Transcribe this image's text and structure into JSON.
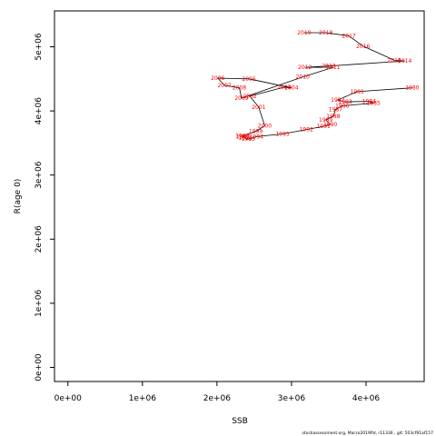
{
  "chart_data": {
    "type": "line",
    "xlabel": "SSB",
    "ylabel": "R(age 0)",
    "xlim": [
      -180000,
      4780000
    ],
    "ylim": [
      -220000,
      5560000
    ],
    "x_ticks": [
      0,
      1000000,
      2000000,
      3000000,
      4000000
    ],
    "x_tick_labels": [
      "0e+00",
      "1e+06",
      "2e+06",
      "3e+06",
      "4e+06"
    ],
    "y_ticks": [
      0,
      1000000,
      2000000,
      3000000,
      4000000,
      5000000
    ],
    "y_tick_labels": [
      "0e+00",
      "1e+06",
      "2e+06",
      "3e+06",
      "4e+06",
      "5e+06"
    ],
    "grid": false,
    "line_color": "#000000",
    "label_color": "#ff0000",
    "footnote": "stockassessment.org, Macro2019fld, r11336 , git: 503cf91af157",
    "points": [
      {
        "label": "1980",
        "x": 4620000,
        "y": 4360000
      },
      {
        "label": "1981",
        "x": 3880000,
        "y": 4300000
      },
      {
        "label": "1982",
        "x": 3620000,
        "y": 4170000
      },
      {
        "label": "1983",
        "x": 3720000,
        "y": 4140000
      },
      {
        "label": "1984",
        "x": 4040000,
        "y": 4150000
      },
      {
        "label": "1985",
        "x": 4100000,
        "y": 4120000
      },
      {
        "label": "1986",
        "x": 3680000,
        "y": 4080000
      },
      {
        "label": "1987",
        "x": 3590000,
        "y": 4020000
      },
      {
        "label": "1988",
        "x": 3560000,
        "y": 3920000
      },
      {
        "label": "1989",
        "x": 3460000,
        "y": 3860000
      },
      {
        "label": "1990",
        "x": 3520000,
        "y": 3790000
      },
      {
        "label": "1991",
        "x": 3430000,
        "y": 3760000
      },
      {
        "label": "1992",
        "x": 3200000,
        "y": 3710000
      },
      {
        "label": "1993",
        "x": 2880000,
        "y": 3640000
      },
      {
        "label": "1994",
        "x": 2530000,
        "y": 3600000
      },
      {
        "label": "1995",
        "x": 2420000,
        "y": 3560000
      },
      {
        "label": "1996",
        "x": 2380000,
        "y": 3580000
      },
      {
        "label": "1997",
        "x": 2350000,
        "y": 3600000
      },
      {
        "label": "1998",
        "x": 2340000,
        "y": 3610000
      },
      {
        "label": "1999",
        "x": 2520000,
        "y": 3680000
      },
      {
        "label": "2000",
        "x": 2640000,
        "y": 3770000
      },
      {
        "label": "2001",
        "x": 2560000,
        "y": 4060000
      },
      {
        "label": "2002",
        "x": 2440000,
        "y": 4230000
      },
      {
        "label": "2003",
        "x": 2900000,
        "y": 4370000
      },
      {
        "label": "2004",
        "x": 3000000,
        "y": 4360000
      },
      {
        "label": "2005",
        "x": 2430000,
        "y": 4500000
      },
      {
        "label": "2006",
        "x": 2010000,
        "y": 4510000
      },
      {
        "label": "2007",
        "x": 2100000,
        "y": 4400000
      },
      {
        "label": "2008",
        "x": 2300000,
        "y": 4360000
      },
      {
        "label": "2009",
        "x": 2330000,
        "y": 4200000
      },
      {
        "label": "2010",
        "x": 3150000,
        "y": 4530000
      },
      {
        "label": "2011",
        "x": 3560000,
        "y": 4680000
      },
      {
        "label": "2012",
        "x": 3180000,
        "y": 4680000
      },
      {
        "label": "2013",
        "x": 3500000,
        "y": 4700000
      },
      {
        "label": "2014",
        "x": 4520000,
        "y": 4780000
      },
      {
        "label": "2015",
        "x": 4380000,
        "y": 4790000
      },
      {
        "label": "2016",
        "x": 3960000,
        "y": 5010000
      },
      {
        "label": "2017",
        "x": 3770000,
        "y": 5170000
      },
      {
        "label": "2018",
        "x": 3460000,
        "y": 5220000
      },
      {
        "label": "2019",
        "x": 3170000,
        "y": 5220000
      }
    ]
  }
}
